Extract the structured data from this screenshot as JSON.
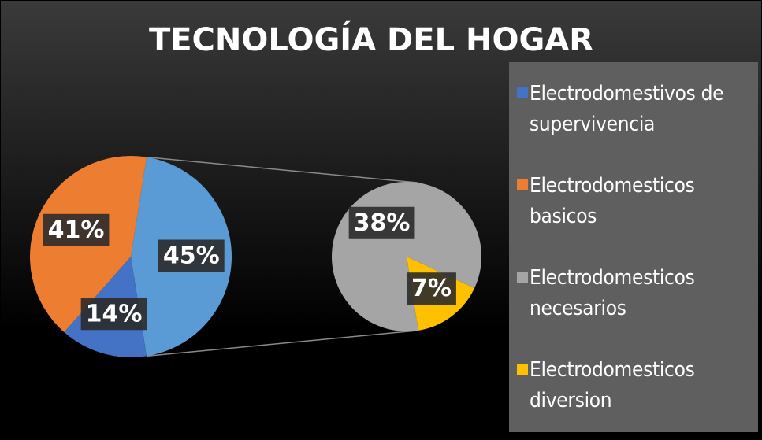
{
  "chart_data": {
    "type": "pie-of-pie",
    "title": "TECNOLOGÍA DEL HOGAR",
    "categories": [
      "Electrodomestivos de supervivencia",
      "Electrodomesticos basicos",
      "Electrodomesticos necesarios",
      "Electrodomesticos diversion"
    ],
    "values": [
      14,
      41,
      38,
      7
    ],
    "value_labels": [
      "14%",
      "41%",
      "38%",
      "7%"
    ],
    "colors": [
      "#4472c4",
      "#ed7d31",
      "#a5a5a5",
      "#ffc000"
    ],
    "second_plot_count": 2,
    "other": {
      "value": 45,
      "label": "45%",
      "color": "#5b9bd5"
    }
  }
}
